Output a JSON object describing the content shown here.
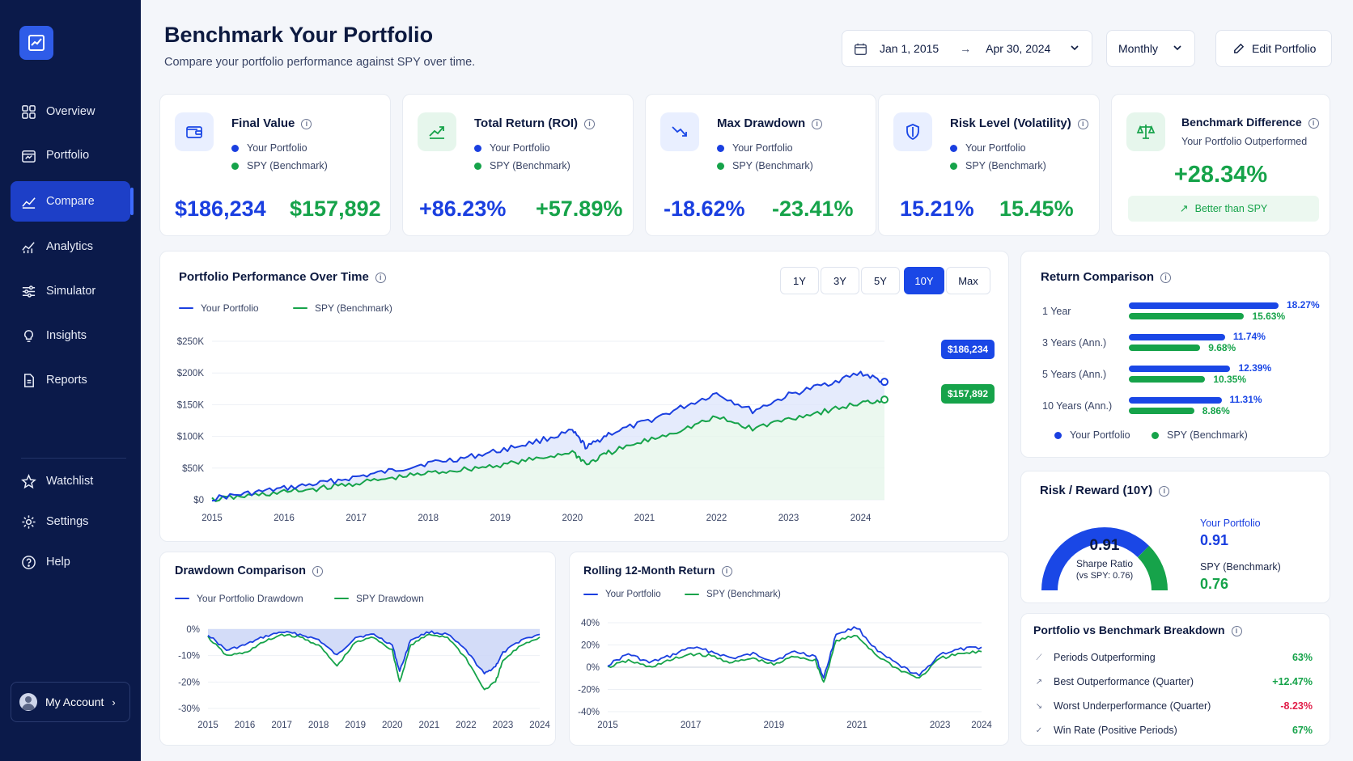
{
  "sidebar": {
    "items": [
      {
        "label": "Overview",
        "icon": "grid-icon"
      },
      {
        "label": "Portfolio",
        "icon": "briefcase-icon"
      },
      {
        "label": "Compare",
        "icon": "compare-chart-icon"
      },
      {
        "label": "Analytics",
        "icon": "analytics-icon"
      },
      {
        "label": "Simulator",
        "icon": "sliders-icon"
      },
      {
        "label": "Insights",
        "icon": "lightbulb-icon"
      },
      {
        "label": "Reports",
        "icon": "document-icon"
      }
    ],
    "bottom_items": [
      {
        "label": "Watchlist",
        "icon": "star-icon"
      },
      {
        "label": "Settings",
        "icon": "gear-icon"
      },
      {
        "label": "Help",
        "icon": "help-icon"
      }
    ],
    "account": "My Account"
  },
  "header": {
    "title": "Benchmark Your Portfolio",
    "subtitle": "Compare your portfolio performance against SPY over time.",
    "date_start": "Jan 1, 2015",
    "date_arrow": "→",
    "date_end": "Apr 30, 2024",
    "frequency": "Monthly",
    "edit_button": "Edit Portfolio"
  },
  "legend": {
    "portfolio": "Your Portfolio",
    "benchmark": "SPY (Benchmark)"
  },
  "kpis": [
    {
      "title": "Final Value",
      "portfolio": "$186,234",
      "benchmark": "$157,892"
    },
    {
      "title": "Total Return (ROI)",
      "portfolio": "+86.23%",
      "benchmark": "+57.89%"
    },
    {
      "title": "Max Drawdown",
      "portfolio": "-18.62%",
      "benchmark": "-23.41%"
    },
    {
      "title": "Risk Level (Volatility)",
      "portfolio": "15.21%",
      "benchmark": "15.45%"
    }
  ],
  "benchmark_diff": {
    "title": "Benchmark Difference",
    "subtitle": "Your Portfolio Outperformed",
    "value": "+28.34%",
    "badge": "Better than SPY"
  },
  "performance": {
    "title": "Portfolio Performance Over Time",
    "timeframes": [
      "1Y",
      "3Y",
      "5Y",
      "10Y",
      "Max"
    ],
    "active_timeframe": "10Y",
    "portfolio_end_label": "$186,234",
    "benchmark_end_label": "$157,892"
  },
  "drawdown": {
    "title": "Drawdown Comparison",
    "legend_portfolio": "Your Portfolio Drawdown",
    "legend_benchmark": "SPY Drawdown"
  },
  "rolling": {
    "title": "Rolling 12-Month Return"
  },
  "return_comparison": {
    "title": "Return Comparison",
    "rows": [
      {
        "label": "1 Year",
        "portfolio": 18.27,
        "benchmark": 15.63,
        "portfolio_text": "18.27%",
        "benchmark_text": "15.63%"
      },
      {
        "label": "3 Years (Ann.)",
        "portfolio": 11.74,
        "benchmark": 9.68,
        "portfolio_text": "11.74%",
        "benchmark_text": "9.68%"
      },
      {
        "label": "5 Years (Ann.)",
        "portfolio": 12.39,
        "benchmark": 10.35,
        "portfolio_text": "12.39%",
        "benchmark_text": "10.35%"
      },
      {
        "label": "10 Years (Ann.)",
        "portfolio": 11.31,
        "benchmark": 8.86,
        "portfolio_text": "11.31%",
        "benchmark_text": "8.86%"
      }
    ]
  },
  "risk_reward": {
    "title": "Risk / Reward (10Y)",
    "value": "0.91",
    "gauge_label": "Sharpe Ratio",
    "gauge_sub": "(vs SPY: 0.76)",
    "portfolio_label": "Your Portfolio",
    "portfolio_value": "0.91",
    "benchmark_label": "SPY (Benchmark)",
    "benchmark_value": "0.76"
  },
  "breakdown": {
    "title": "Portfolio vs Benchmark Breakdown",
    "rows": [
      {
        "label": "Periods Outperforming",
        "value": "63%",
        "color": "#16a34a"
      },
      {
        "label": "Best Outperformance (Quarter)",
        "value": "+12.47%",
        "color": "#16a34a"
      },
      {
        "label": "Worst Underperformance (Quarter)",
        "value": "-8.23%",
        "color": "#e11d48"
      },
      {
        "label": "Win Rate (Positive Periods)",
        "value": "67%",
        "color": "#16a34a"
      }
    ]
  },
  "chart_data": [
    {
      "type": "line",
      "title": "Portfolio Performance Over Time",
      "x": [
        2015,
        2015.5,
        2016,
        2016.5,
        2017,
        2017.5,
        2018,
        2018.5,
        2019,
        2019.5,
        2020,
        2020.2,
        2020.5,
        2021,
        2021.5,
        2022,
        2022.5,
        2023,
        2023.5,
        2024,
        2024.33
      ],
      "series": [
        {
          "name": "Your Portfolio",
          "values": [
            2,
            10,
            18,
            26,
            36,
            46,
            58,
            66,
            78,
            92,
            108,
            82,
            104,
            122,
            145,
            168,
            140,
            165,
            182,
            200,
            186
          ]
        },
        {
          "name": "SPY (Benchmark)",
          "values": [
            0,
            6,
            12,
            18,
            26,
            34,
            42,
            48,
            55,
            64,
            76,
            56,
            74,
            92,
            110,
            130,
            112,
            128,
            140,
            152,
            158
          ]
        }
      ],
      "xticks": [
        "2015",
        "2016",
        "2017",
        "2018",
        "2019",
        "2020",
        "2021",
        "2022",
        "2023",
        "2024"
      ],
      "yticks": [
        "$0",
        "$50K",
        "$100K",
        "$150K",
        "$200K",
        "$250K"
      ],
      "ylim": [
        0,
        250
      ]
    },
    {
      "type": "area",
      "title": "Drawdown Comparison",
      "x": [
        2015,
        2015.5,
        2016,
        2016.5,
        2017,
        2017.5,
        2018,
        2018.5,
        2019,
        2019.5,
        2020,
        2020.2,
        2020.5,
        2021,
        2021.5,
        2022,
        2022.5,
        2022.8,
        2023,
        2023.5,
        2024
      ],
      "series": [
        {
          "name": "Your Portfolio Drawdown",
          "values": [
            -2,
            -8,
            -6,
            -3,
            -1,
            -2,
            -4,
            -10,
            -3,
            -2,
            -6,
            -16,
            -4,
            -1,
            -2,
            -8,
            -17,
            -14,
            -9,
            -4,
            -2
          ]
        },
        {
          "name": "SPY Drawdown",
          "values": [
            -3,
            -10,
            -9,
            -5,
            -2,
            -3,
            -6,
            -14,
            -5,
            -3,
            -8,
            -20,
            -6,
            -2,
            -3,
            -11,
            -23,
            -20,
            -12,
            -6,
            -3
          ]
        }
      ],
      "xticks": [
        "2015",
        "2016",
        "2017",
        "2018",
        "2019",
        "2020",
        "2021",
        "2022",
        "2023",
        "2024"
      ],
      "yticks": [
        "0%",
        "-10%",
        "-20%",
        "-30%"
      ],
      "ylim": [
        -30,
        0
      ]
    },
    {
      "type": "line",
      "title": "Rolling 12-Month Return",
      "x": [
        2015,
        2015.5,
        2016,
        2016.5,
        2017,
        2017.5,
        2018,
        2018.5,
        2019,
        2019.5,
        2020,
        2020.2,
        2020.5,
        2021,
        2021.5,
        2022,
        2022.5,
        2023,
        2023.5,
        2024
      ],
      "series": [
        {
          "name": "Your Portfolio",
          "values": [
            2,
            12,
            4,
            10,
            18,
            14,
            8,
            12,
            6,
            14,
            10,
            -10,
            30,
            36,
            14,
            2,
            -8,
            12,
            16,
            18
          ]
        },
        {
          "name": "SPY (Benchmark)",
          "values": [
            0,
            6,
            0,
            6,
            12,
            10,
            4,
            8,
            2,
            10,
            6,
            -14,
            24,
            28,
            10,
            -2,
            -10,
            8,
            12,
            14
          ]
        }
      ],
      "xticks": [
        "2015",
        "2017",
        "2019",
        "2021",
        "2023",
        "2024"
      ],
      "yticks": [
        "40%",
        "20%",
        "0%",
        "-20%",
        "-40%"
      ],
      "ylim": [
        -40,
        40
      ]
    },
    {
      "type": "bar",
      "title": "Return Comparison",
      "categories": [
        "1 Year",
        "3 Years (Ann.)",
        "5 Years (Ann.)",
        "10 Years (Ann.)"
      ],
      "series": [
        {
          "name": "Your Portfolio",
          "values": [
            18.27,
            11.74,
            12.39,
            11.31
          ]
        },
        {
          "name": "SPY (Benchmark)",
          "values": [
            15.63,
            9.68,
            10.35,
            8.86
          ]
        }
      ]
    }
  ],
  "colors": {
    "portfolio": "#1a3fe0",
    "benchmark": "#16a34a",
    "sidebar": "#0b1a4a",
    "accent": "#1a47e6"
  }
}
